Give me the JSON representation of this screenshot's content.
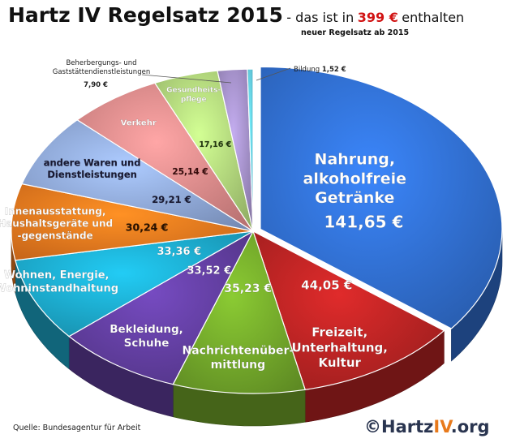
{
  "header": {
    "title": "Hartz IV Regelsatz 2015",
    "subtitle_part1": "- das ist in",
    "amount": "399 €",
    "subtitle_part2": "enthalten",
    "note": "neuer Regelsatz ab 2015"
  },
  "footer": {
    "source": "Quelle: Bundesagentur  für Arbeit",
    "copyright_prefix": "©Hartz",
    "copyright_iv": "IV",
    "copyright_suffix": ".org"
  },
  "chart_data": {
    "type": "pie",
    "title": "Hartz IV Regelsatz 2015",
    "unit": "€",
    "total": 399,
    "slices": [
      {
        "label": "Nahrung, alkoholfreie Getränke",
        "value": 141.65,
        "value_label": "141,65 €",
        "color": "#2f6bc9"
      },
      {
        "label": "Freizeit, Unterhaltung, Kultur",
        "value": 44.05,
        "value_label": "44,05 €",
        "color": "#b32222"
      },
      {
        "label": "Nachrichtenübermittlung",
        "value": 35.23,
        "value_label": "35,23 €",
        "color": "#6fa229"
      },
      {
        "label": "Bekleidung, Schuhe",
        "value": 33.52,
        "value_label": "33,52 €",
        "color": "#5e3c9a"
      },
      {
        "label": "Wohnen, Energie, Wohninstandhaltung",
        "value": 33.36,
        "value_label": "33,36 €",
        "color": "#1ba3c4"
      },
      {
        "label": "Innenausstattung, Haushaltsgeräte und -gegenstände",
        "value": 30.24,
        "value_label": "30,24 €",
        "color": "#e6741d"
      },
      {
        "label": "andere Waren und Dienstleistungen",
        "value": 29.21,
        "value_label": "29,21 €",
        "color": "#8aa2d2"
      },
      {
        "label": "Verkehr",
        "value": 25.14,
        "value_label": "25,14 €",
        "color": "#d78585"
      },
      {
        "label": "Gesundheitspflege",
        "value": 17.16,
        "value_label": "17,16 €",
        "color": "#a9cc76"
      },
      {
        "label": "Beherbergungs- und Gaststättendienstleistungen",
        "value": 7.9,
        "value_label": "7,90 €",
        "color": "#9d8ac0"
      },
      {
        "label": "Bildung",
        "value": 1.52,
        "value_label": "1,52 €",
        "color": "#5fc3de"
      }
    ]
  }
}
